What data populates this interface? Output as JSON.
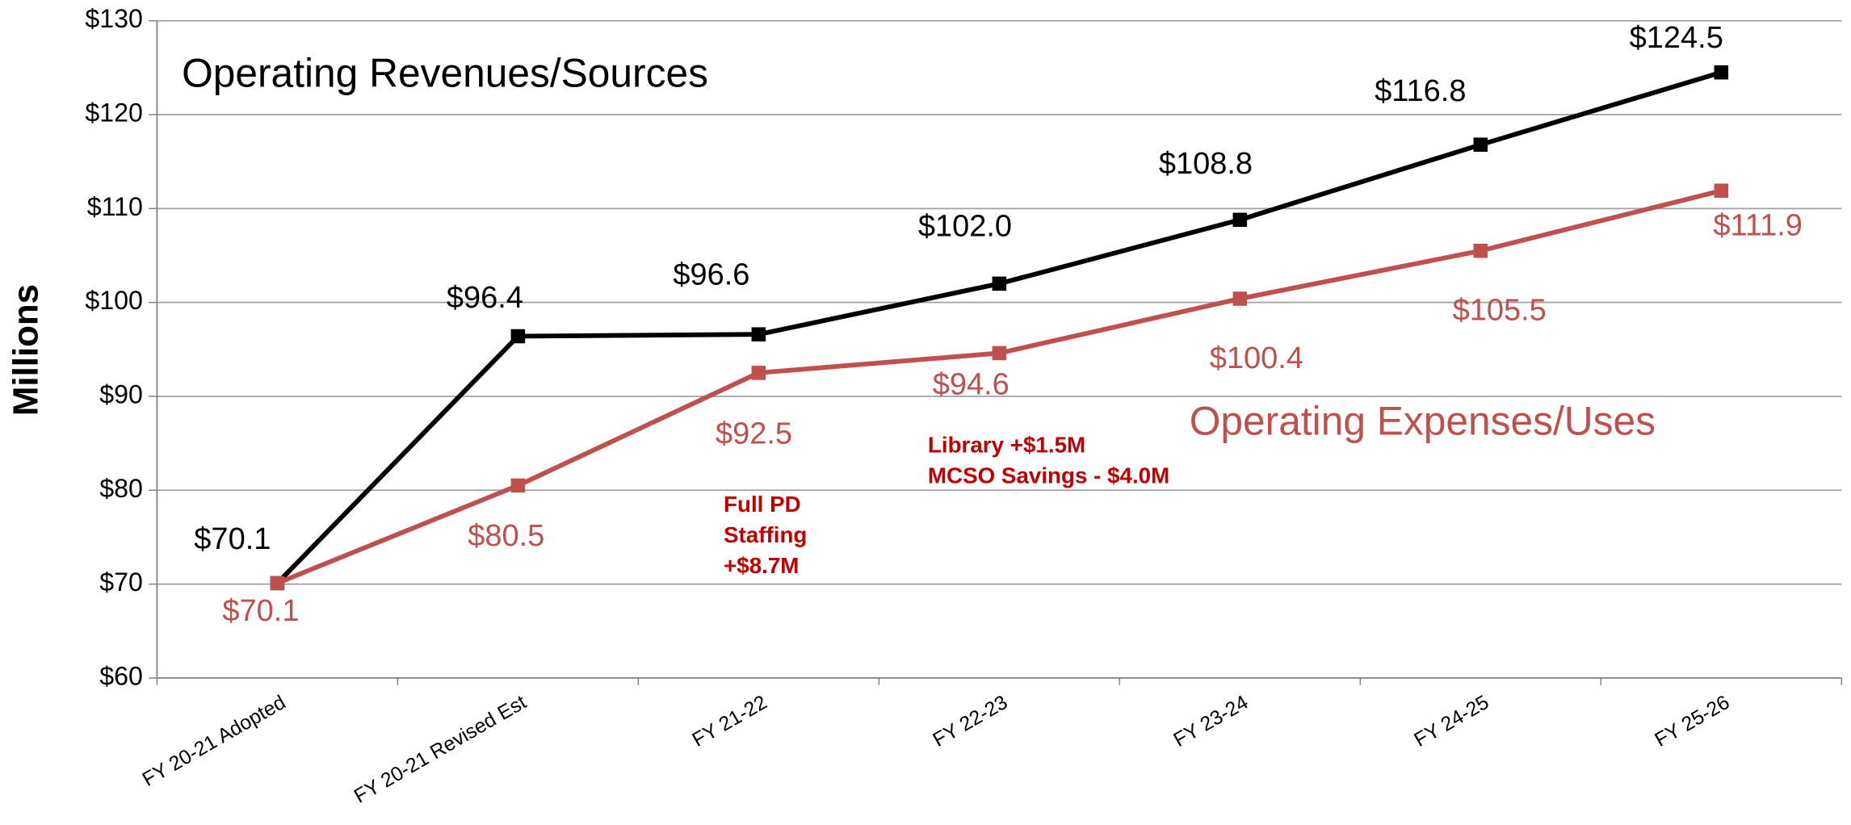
{
  "chart_data": {
    "type": "line",
    "y_label": "Millions",
    "categories": [
      "FY 20-21 Adopted",
      "FY 20-21 Revised Est",
      "FY 21-22",
      "FY 22-23",
      "FY 23-24",
      "FY 24-25",
      "FY 25-26"
    ],
    "series": [
      {
        "name": "Operating Revenues/Sources",
        "color": "#000000",
        "values": [
          70.1,
          96.4,
          96.6,
          102.0,
          108.8,
          116.8,
          124.5
        ],
        "value_labels": [
          "$70.1",
          "$96.4",
          "$96.6",
          "$102.0",
          "$108.8",
          "$116.8",
          "$124.5"
        ]
      },
      {
        "name": "Operating Expenses/Uses",
        "color": "#c0504d",
        "values": [
          70.1,
          80.5,
          92.5,
          94.6,
          100.4,
          105.5,
          111.9
        ],
        "value_labels": [
          "$70.1",
          "$80.5",
          "$92.5",
          "$94.6",
          "$100.4",
          "$105.5",
          "$111.9"
        ]
      }
    ],
    "ylim": [
      60,
      130
    ],
    "yticks": [
      {
        "value": 60,
        "label": "$60"
      },
      {
        "value": 70,
        "label": "$70"
      },
      {
        "value": 80,
        "label": "$80"
      },
      {
        "value": 90,
        "label": "$90"
      },
      {
        "value": 100,
        "label": "$100"
      },
      {
        "value": 110,
        "label": "$110"
      },
      {
        "value": 120,
        "label": "$120"
      },
      {
        "value": 130,
        "label": "$130"
      }
    ],
    "grid": true,
    "annotations": [
      {
        "lines": [
          "Full PD",
          "Staffing",
          "+$8.7M"
        ],
        "color": "#c00000"
      },
      {
        "lines": [
          "Library +$1.5M",
          "MCSO Savings - $4.0M"
        ],
        "color": "#c00000"
      }
    ]
  }
}
